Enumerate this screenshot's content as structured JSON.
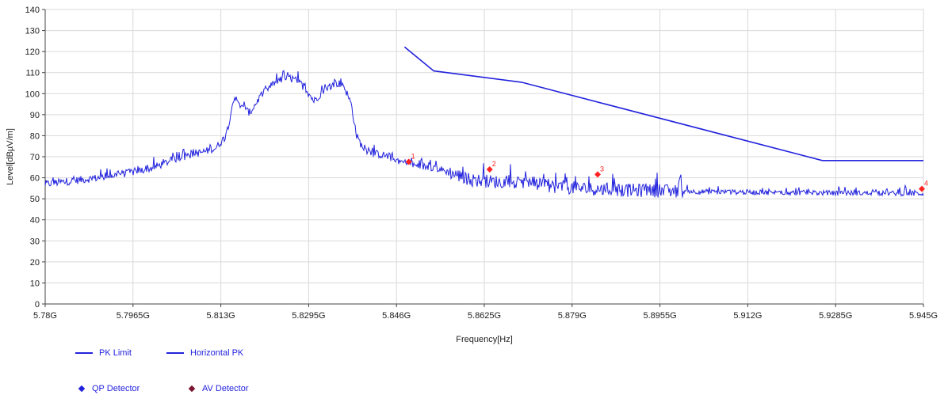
{
  "chart_data": {
    "type": "line",
    "title": "",
    "xlabel": "Frequency[Hz]",
    "ylabel": "Level[dBµV/m]",
    "xlim": [
      5.78,
      5.945
    ],
    "ylim": [
      0,
      140
    ],
    "grid": true,
    "x_ticks": [
      5.78,
      5.7965,
      5.813,
      5.8295,
      5.846,
      5.8625,
      5.879,
      5.8955,
      5.912,
      5.9285,
      5.945
    ],
    "x_tick_labels": [
      "5.78G",
      "5.7965G",
      "5.813G",
      "5.8295G",
      "5.846G",
      "5.8625G",
      "5.879G",
      "5.8955G",
      "5.912G",
      "5.9285G",
      "5.945G"
    ],
    "y_ticks": [
      0,
      10,
      20,
      30,
      40,
      50,
      60,
      70,
      80,
      90,
      100,
      110,
      120,
      130,
      140
    ],
    "y_tick_labels": [
      "0",
      "10",
      "20",
      "30",
      "40",
      "50",
      "60",
      "70",
      "80",
      "90",
      "100",
      "110",
      "120",
      "130",
      "140"
    ],
    "series": [
      {
        "name": "PK Limit",
        "color": "#2222dd",
        "x": [
          5.8475,
          5.853,
          5.8695,
          5.926,
          5.945
        ],
        "y": [
          122.2,
          110.8,
          105.4,
          68.2,
          68.2
        ]
      },
      {
        "name": "Horizontal PK",
        "color": "#2222dd",
        "noisy": true,
        "x": [
          5.78,
          5.785,
          5.79,
          5.795,
          5.8,
          5.805,
          5.81,
          5.812,
          5.814,
          5.8155,
          5.817,
          5.8185,
          5.8205,
          5.823,
          5.8255,
          5.8275,
          5.829,
          5.8305,
          5.8325,
          5.8345,
          5.836,
          5.8375,
          5.8385,
          5.8395,
          5.841,
          5.844,
          5.847,
          5.85,
          5.853,
          5.856,
          5.86,
          5.865,
          5.87,
          5.875,
          5.88,
          5.885,
          5.89,
          5.895,
          5.9,
          5.905,
          5.91,
          5.915,
          5.92,
          5.925,
          5.93,
          5.935,
          5.94,
          5.945
        ],
        "y": [
          57.0,
          58.5,
          60.0,
          62.0,
          64.5,
          69.5,
          72.5,
          74.0,
          80.0,
          98.5,
          93.0,
          91.0,
          99.0,
          105.0,
          107.5,
          106.0,
          102.0,
          96.5,
          102.0,
          105.0,
          104.5,
          95.0,
          80.0,
          75.0,
          72.0,
          70.5,
          67.5,
          65.5,
          65.0,
          62.5,
          59.0,
          58.0,
          57.0,
          56.0,
          55.0,
          54.5,
          54.0,
          53.8,
          53.5,
          53.3,
          53.2,
          53.0,
          53.0,
          52.8,
          52.8,
          52.7,
          52.6,
          52.5
        ]
      }
    ],
    "markers": [
      {
        "label": "1",
        "x": 5.8483,
        "y": 67.6,
        "color": "#ff2222"
      },
      {
        "label": "2",
        "x": 5.8635,
        "y": 64.0,
        "color": "#ff2222"
      },
      {
        "label": "3",
        "x": 5.8838,
        "y": 61.6,
        "color": "#ff2222"
      },
      {
        "label": "4",
        "x": 5.9447,
        "y": 54.7,
        "color": "#ff2222"
      }
    ]
  },
  "legend": {
    "items": [
      {
        "label": "PK Limit",
        "color": "#2222dd",
        "kind": "line"
      },
      {
        "label": "Horizontal PK",
        "color": "#2222dd",
        "kind": "line"
      },
      {
        "label": "QP Detector",
        "color": "#2222dd",
        "kind": "diamond"
      },
      {
        "label": "AV Detector",
        "color": "#7a1430",
        "kind": "diamond"
      }
    ]
  }
}
